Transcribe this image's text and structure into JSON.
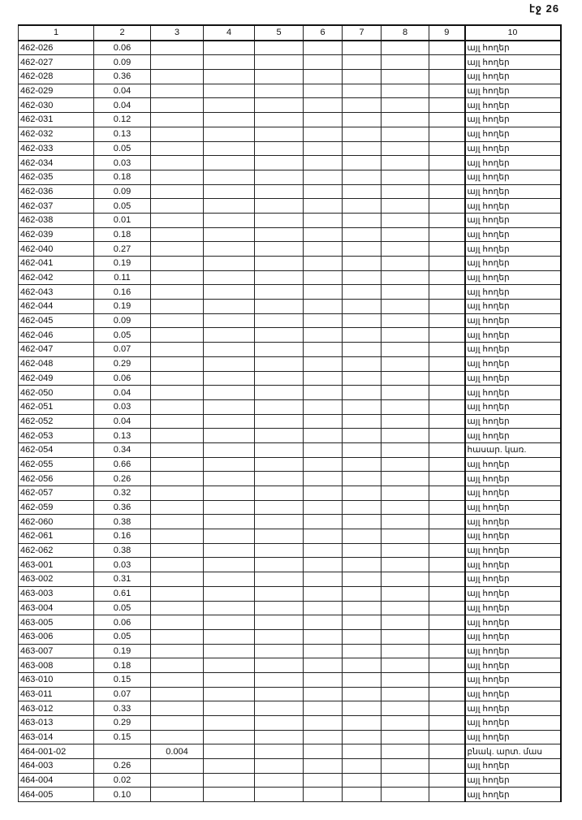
{
  "page_label": "էջ 26",
  "columns": [
    "1",
    "2",
    "3",
    "4",
    "5",
    "6",
    "7",
    "8",
    "9",
    "10"
  ],
  "rows": [
    [
      "462-026",
      "0.06",
      "",
      "այլ հողեր"
    ],
    [
      "462-027",
      "0.09",
      "",
      "այլ հողեր"
    ],
    [
      "462-028",
      "0.36",
      "",
      "այլ հողեր"
    ],
    [
      "462-029",
      "0.04",
      "",
      "այլ հողեր"
    ],
    [
      "462-030",
      "0.04",
      "",
      "այլ հողեր"
    ],
    [
      "462-031",
      "0.12",
      "",
      "այլ հողեր"
    ],
    [
      "462-032",
      "0.13",
      "",
      "այլ հողեր"
    ],
    [
      "462-033",
      "0.05",
      "",
      "այլ հողեր"
    ],
    [
      "462-034",
      "0.03",
      "",
      "այլ հողեր"
    ],
    [
      "462-035",
      "0.18",
      "",
      "այլ հողեր"
    ],
    [
      "462-036",
      "0.09",
      "",
      "այլ հողեր"
    ],
    [
      "462-037",
      "0.05",
      "",
      "այլ հողեր"
    ],
    [
      "462-038",
      "0.01",
      "",
      "այլ հողեր"
    ],
    [
      "462-039",
      "0.18",
      "",
      "այլ հողեր"
    ],
    [
      "462-040",
      "0.27",
      "",
      "այլ հողեր"
    ],
    [
      "462-041",
      "0.19",
      "",
      "այլ հողեր"
    ],
    [
      "462-042",
      "0.11",
      "",
      "այլ հողեր"
    ],
    [
      "462-043",
      "0.16",
      "",
      "այլ հողեր"
    ],
    [
      "462-044",
      "0.19",
      "",
      "այլ հողեր"
    ],
    [
      "462-045",
      "0.09",
      "",
      "այլ հողեր"
    ],
    [
      "462-046",
      "0.05",
      "",
      "այլ հողեր"
    ],
    [
      "462-047",
      "0.07",
      "",
      "այլ հողեր"
    ],
    [
      "462-048",
      "0.29",
      "",
      "այլ հողեր"
    ],
    [
      "462-049",
      "0.06",
      "",
      "այլ հողեր"
    ],
    [
      "462-050",
      "0.04",
      "",
      "այլ հողեր"
    ],
    [
      "462-051",
      "0.03",
      "",
      "այլ հողեր"
    ],
    [
      "462-052",
      "0.04",
      "",
      "այլ հողեր"
    ],
    [
      "462-053",
      "0.13",
      "",
      "այլ հողեր"
    ],
    [
      "462-054",
      "0.34",
      "",
      "հասար. կառ."
    ],
    [
      "462-055",
      "0.66",
      "",
      "այլ հողեր"
    ],
    [
      "462-056",
      "0.26",
      "",
      "այլ հողեր"
    ],
    [
      "462-057",
      "0.32",
      "",
      "այլ հողեր"
    ],
    [
      "462-059",
      "0.36",
      "",
      "այլ հողեր"
    ],
    [
      "462-060",
      "0.38",
      "",
      "այլ հողեր"
    ],
    [
      "462-061",
      "0.16",
      "",
      "այլ հողեր"
    ],
    [
      "462-062",
      "0.38",
      "",
      "այլ հողեր"
    ],
    [
      "463-001",
      "0.03",
      "",
      "այլ հողեր"
    ],
    [
      "463-002",
      "0.31",
      "",
      "այլ հողեր"
    ],
    [
      "463-003",
      "0.61",
      "",
      "այլ հողեր"
    ],
    [
      "463-004",
      "0.05",
      "",
      "այլ հողեր"
    ],
    [
      "463-005",
      "0.06",
      "",
      "այլ հողեր"
    ],
    [
      "463-006",
      "0.05",
      "",
      "այլ հողեր"
    ],
    [
      "463-007",
      "0.19",
      "",
      "այլ հողեր"
    ],
    [
      "463-008",
      "0.18",
      "",
      "այլ հողեր"
    ],
    [
      "463-010",
      "0.15",
      "",
      "այլ հողեր"
    ],
    [
      "463-011",
      "0.07",
      "",
      "այլ հողեր"
    ],
    [
      "463-012",
      "0.33",
      "",
      "այլ հողեր"
    ],
    [
      "463-013",
      "0.29",
      "",
      "այլ հողեր"
    ],
    [
      "463-014",
      "0.15",
      "",
      "այլ հողեր"
    ],
    [
      "464-001-02",
      "",
      "0.004",
      "բնակ. արտ. մաս"
    ],
    [
      "464-003",
      "0.26",
      "",
      "այլ հողեր"
    ],
    [
      "464-004",
      "0.02",
      "",
      "այլ հողեր"
    ],
    [
      "464-005",
      "0.10",
      "",
      "այլ հողեր"
    ]
  ]
}
